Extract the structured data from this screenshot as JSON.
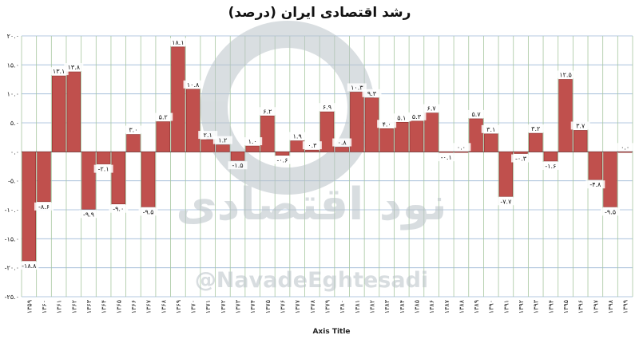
{
  "chart_data": {
    "type": "bar",
    "title": "رشد اقتصادی ایران (درصد)",
    "xlabel": "Axis Title",
    "ylabel": "",
    "ylim": [
      -25,
      20
    ],
    "yticks": [
      20,
      15,
      10,
      5,
      0,
      -5,
      -10,
      -15,
      -20,
      -25
    ],
    "ytick_labels": [
      "۲۰.۰",
      "۱۵.۰",
      "۱۰.۰",
      "۵.۰",
      "۰.۰",
      "-۵.۰",
      "-۱۰.۰",
      "-۱۵.۰",
      "-۲۰.۰",
      "-۲۵.۰"
    ],
    "grid": true,
    "bar_color": "#c0504d",
    "categories": [
      "۱۳۵۹",
      "۱۳۶۰",
      "۱۳۶۱",
      "۱۳۶۲",
      "۱۳۶۳",
      "۱۳۶۴",
      "۱۳۶۵",
      "۱۳۶۶",
      "۱۳۶۷",
      "۱۳۶۸",
      "۱۳۶۹",
      "۱۳۷۰",
      "۱۳۷۱",
      "۱۳۷۲",
      "۱۳۷۳",
      "۱۳۷۴",
      "۱۳۷۵",
      "۱۳۷۶",
      "۱۳۷۷",
      "۱۳۷۸",
      "۱۳۷۹",
      "۱۳۸۰",
      "۱۳۸۱",
      "۱۳۸۲",
      "۱۳۸۳",
      "۱۳۸۴",
      "۱۳۸۵",
      "۱۳۸۶",
      "۱۳۸۷",
      "۱۳۸۸",
      "۱۳۸۹",
      "۱۳۹۰",
      "۱۳۹۱",
      "۱۳۹۲",
      "۱۳۹۳",
      "۱۳۹۴",
      "۱۳۹۵",
      "۱۳۹۶",
      "۱۳۹۷",
      "۱۳۹۸",
      "۱۳۹۹"
    ],
    "values": [
      -18.8,
      -8.6,
      13.1,
      13.8,
      -9.9,
      -2.1,
      -9.0,
      3.0,
      -9.5,
      5.2,
      18.1,
      10.8,
      2.1,
      1.2,
      -1.5,
      1.0,
      6.2,
      -0.6,
      1.9,
      0.3,
      6.9,
      0.8,
      10.3,
      9.3,
      4.0,
      5.1,
      5.3,
      6.7,
      -0.1,
      0.0,
      5.7,
      3.1,
      -7.7,
      -0.3,
      3.2,
      -1.6,
      12.5,
      3.7,
      -4.8,
      -9.5,
      0.0
    ],
    "data_labels": [
      "-۱۸.۸",
      "-۸.۶",
      "۱۳.۱",
      "۱۳.۸",
      "-۹.۹",
      "-۲.۱",
      "-۹.۰",
      "۳.۰",
      "-۹.۵",
      "۵.۲",
      "۱۸.۱",
      "۱۰.۸",
      "۲.۱",
      "۱.۲",
      "-۱.۵",
      "۱.۰",
      "۶.۲",
      "-۰.۶",
      "۱.۹",
      "۰.۳",
      "۶.۹",
      "۰.۸",
      "۱۰.۳",
      "۹.۳",
      "۴.۰",
      "۵.۱",
      "۵.۳",
      "۶.۷",
      "-۰.۱",
      "۰.۰",
      "۵.۷",
      "۳.۱",
      "-۷.۷",
      "-۰.۳",
      "۳.۲",
      "-۱.۶",
      "۱۲.۵",
      "۳.۷",
      "-۴.۸",
      "-۹.۵",
      "۰.۰"
    ]
  },
  "watermark": {
    "persian_text": "نود اقتصادی",
    "handle": "@NavadeEghtesadi",
    "logo_color": "#b9c2c8"
  }
}
